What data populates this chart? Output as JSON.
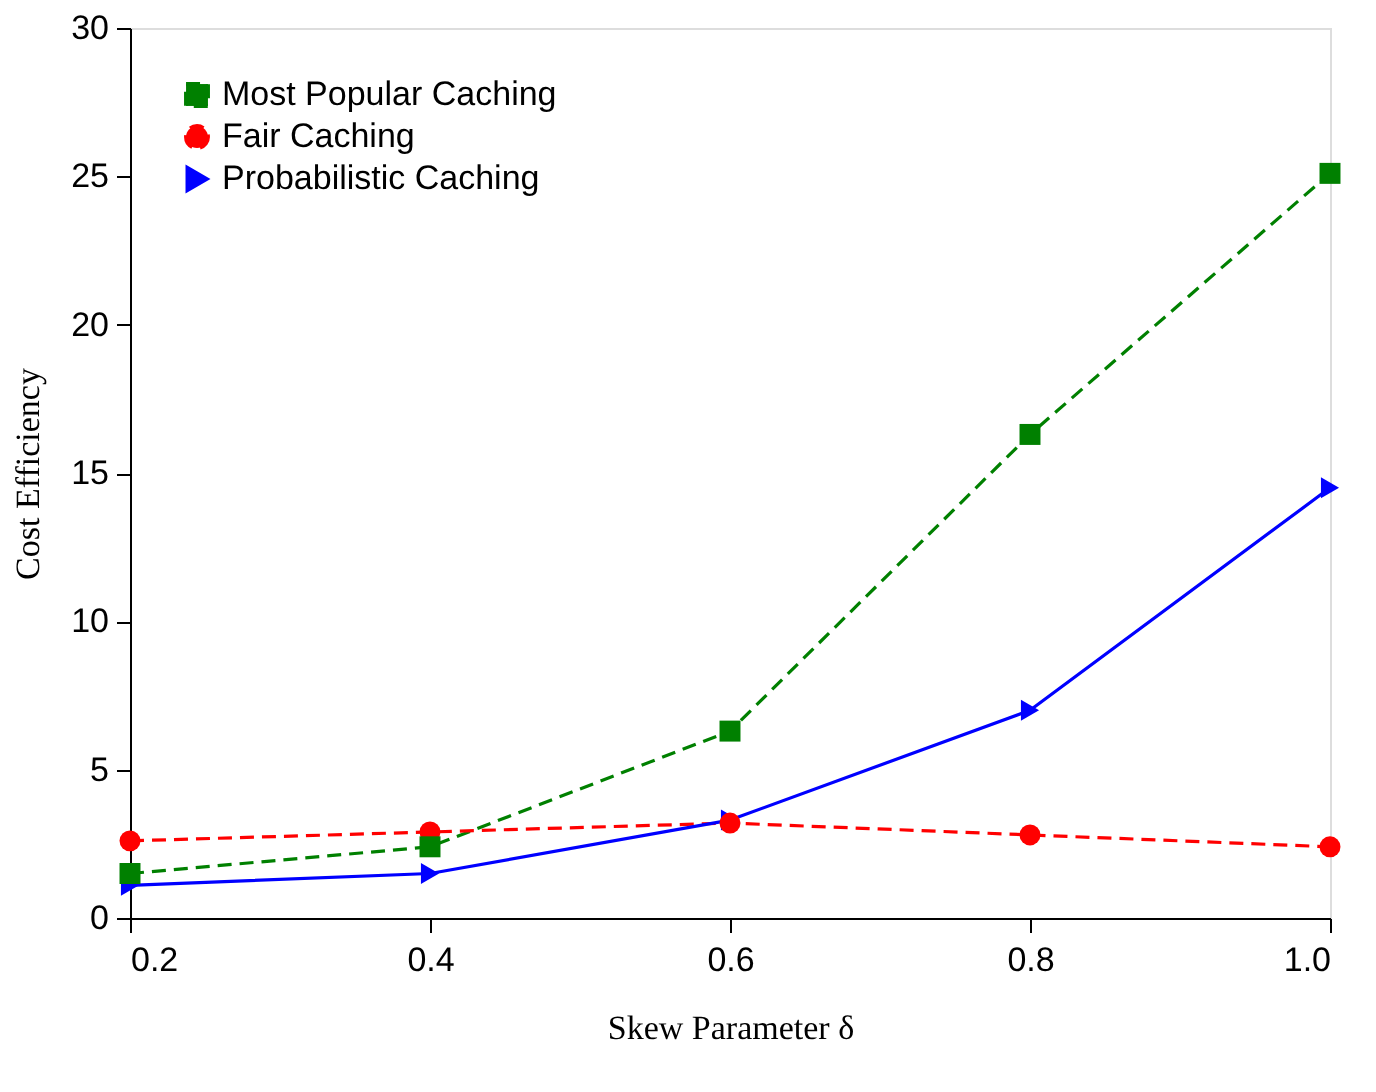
{
  "chart_data": {
    "type": "line",
    "xlabel": "Skew Parameter δ",
    "ylabel": "Cost Efficiency",
    "x": [
      0.2,
      0.4,
      0.6,
      0.8,
      1.0
    ],
    "series": [
      {
        "name": "Most Popular Caching",
        "color": "#008000",
        "marker": "square",
        "line_style": "dashed",
        "values": [
          1.5,
          2.4,
          6.3,
          16.3,
          25.1
        ]
      },
      {
        "name": "Fair Caching",
        "color": "#ff0000",
        "marker": "circle",
        "line_style": "dashed",
        "values": [
          2.6,
          2.9,
          3.2,
          2.8,
          2.4
        ]
      },
      {
        "name": "Probabilistic Caching",
        "color": "#0000ff",
        "marker": "triangle-right",
        "line_style": "solid",
        "values": [
          1.1,
          1.5,
          3.3,
          7.0,
          14.5
        ]
      }
    ],
    "xlim": [
      0.2,
      1.0
    ],
    "xticks": [
      0.2,
      0.4,
      0.6,
      0.8,
      {
        "value": 1,
        "label": "1.0"
      }
    ],
    "ylim": [
      0,
      30
    ],
    "yticks": [
      0,
      5,
      10,
      15,
      20,
      25,
      30
    ],
    "grid": false,
    "legend": "top left"
  }
}
